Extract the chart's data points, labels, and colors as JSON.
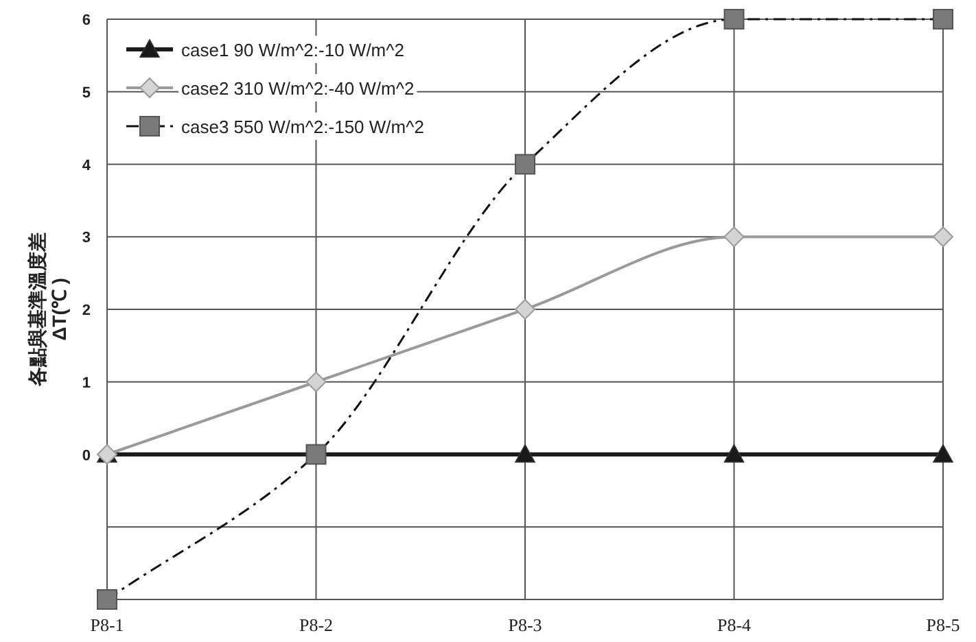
{
  "chart_data": {
    "type": "line",
    "ylabel": "各點與基準溫度差\nΔT(℃ )",
    "categories": [
      "P8-1",
      "P8-2",
      "P8-3",
      "P8-4",
      "P8-5"
    ],
    "series": [
      {
        "name": "case1 90 W/m^2:-10 W/m^2",
        "color": "#1a1a1a",
        "marker": "triangle",
        "line_style": "solid",
        "values": [
          0,
          0,
          0,
          0,
          0
        ]
      },
      {
        "name": "case2 310 W/m^2:-40 W/m^2",
        "color": "#9a9a9a",
        "marker": "diamond",
        "line_style": "solid",
        "values": [
          0,
          1,
          2,
          3,
          3
        ]
      },
      {
        "name": "case3 550 W/m^2:-150 W/m^2",
        "color": "#7a7a7a",
        "marker": "square",
        "line_style": "dashed",
        "values": [
          -2,
          0,
          4,
          6,
          6
        ]
      }
    ],
    "ylim": [
      -2,
      6
    ],
    "yticks": [
      {
        "value": -2,
        "label": null
      },
      {
        "value": -1,
        "label": null
      },
      0,
      1,
      2,
      3,
      4,
      5,
      6
    ],
    "grid": true,
    "legend": "top left"
  }
}
